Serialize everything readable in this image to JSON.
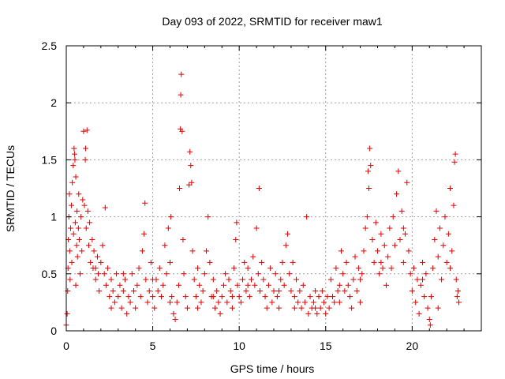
{
  "chart_data": {
    "type": "scatter",
    "title": "Day 093 of 2022, SRMTID for receiver maw1",
    "xlabel": "GPS time / hours",
    "ylabel": "SRMTID / TECUs",
    "xlim": [
      0,
      24
    ],
    "ylim": [
      0,
      2.5
    ],
    "x_ticks": [
      0,
      5,
      10,
      15,
      20
    ],
    "y_ticks": [
      0,
      0.5,
      1,
      1.5,
      2,
      2.5
    ],
    "x_tick_labels": [
      "0",
      "5",
      "10",
      "15",
      "20"
    ],
    "y_tick_labels": [
      "0",
      "0.5",
      "1",
      "1.5",
      "2",
      "2.5"
    ],
    "grid": true,
    "marker": "+",
    "color": "#e00000",
    "series": [
      {
        "name": "SRMTID",
        "points": [
          [
            0.0,
            0.05
          ],
          [
            0.05,
            0.15
          ],
          [
            0.08,
            0.35
          ],
          [
            0.1,
            0.55
          ],
          [
            0.12,
            0.8
          ],
          [
            0.15,
            1.0
          ],
          [
            0.18,
            1.2
          ],
          [
            0.2,
            0.7
          ],
          [
            0.22,
            0.45
          ],
          [
            0.25,
            0.9
          ],
          [
            0.3,
            1.1
          ],
          [
            0.32,
            0.6
          ],
          [
            0.35,
            1.3
          ],
          [
            0.4,
            1.45
          ],
          [
            0.42,
            0.85
          ],
          [
            0.45,
            1.6
          ],
          [
            0.48,
            1.55
          ],
          [
            0.5,
            1.5
          ],
          [
            0.52,
            0.95
          ],
          [
            0.55,
            1.35
          ],
          [
            0.6,
            0.75
          ],
          [
            0.62,
            1.05
          ],
          [
            0.65,
            0.65
          ],
          [
            0.7,
            0.9
          ],
          [
            0.72,
            1.2
          ],
          [
            0.75,
            0.8
          ],
          [
            0.8,
            0.5
          ],
          [
            0.85,
            1.0
          ],
          [
            0.9,
            0.7
          ],
          [
            0.95,
            1.15
          ],
          [
            1.0,
            1.75
          ],
          [
            1.05,
            1.1
          ],
          [
            1.1,
            1.5
          ],
          [
            1.12,
            1.6
          ],
          [
            1.15,
            0.9
          ],
          [
            1.2,
            1.76
          ],
          [
            1.25,
            1.05
          ],
          [
            1.3,
            0.75
          ],
          [
            1.35,
            0.95
          ],
          [
            1.4,
            0.6
          ],
          [
            1.5,
            0.8
          ],
          [
            1.55,
            0.55
          ],
          [
            1.6,
            0.7
          ],
          [
            1.7,
            0.45
          ],
          [
            1.8,
            0.65
          ],
          [
            1.85,
            0.5
          ],
          [
            1.9,
            0.35
          ],
          [
            2.0,
            0.6
          ],
          [
            2.1,
            0.75
          ],
          [
            2.2,
            0.5
          ],
          [
            2.25,
            1.08
          ],
          [
            2.3,
            0.4
          ],
          [
            2.4,
            0.55
          ],
          [
            2.5,
            0.3
          ],
          [
            2.6,
            0.45
          ],
          [
            2.7,
            0.35
          ],
          [
            2.8,
            0.25
          ],
          [
            2.9,
            0.5
          ],
          [
            3.0,
            0.3
          ],
          [
            3.1,
            0.4
          ],
          [
            3.2,
            0.2
          ],
          [
            3.3,
            0.35
          ],
          [
            3.4,
            0.45
          ],
          [
            3.5,
            0.15
          ],
          [
            3.6,
            0.3
          ],
          [
            3.7,
            0.25
          ],
          [
            3.8,
            0.5
          ],
          [
            3.9,
            0.35
          ],
          [
            4.0,
            0.2
          ],
          [
            4.1,
            0.4
          ],
          [
            4.2,
            0.55
          ],
          [
            4.3,
            0.3
          ],
          [
            4.4,
            0.7
          ],
          [
            4.5,
            0.85
          ],
          [
            4.55,
            1.12
          ],
          [
            4.6,
            0.45
          ],
          [
            4.7,
            0.25
          ],
          [
            4.8,
            0.35
          ],
          [
            4.9,
            0.6
          ],
          [
            5.0,
            0.3
          ],
          [
            5.1,
            0.2
          ],
          [
            5.2,
            0.45
          ],
          [
            5.3,
            0.35
          ],
          [
            5.4,
            0.55
          ],
          [
            5.5,
            0.3
          ],
          [
            5.6,
            0.4
          ],
          [
            5.7,
            0.75
          ],
          [
            5.8,
            0.5
          ],
          [
            5.9,
            0.9
          ],
          [
            6.0,
            0.6
          ],
          [
            6.05,
            1.0
          ],
          [
            6.1,
            0.3
          ],
          [
            6.2,
            0.15
          ],
          [
            6.3,
            0.1
          ],
          [
            6.4,
            0.25
          ],
          [
            6.5,
            0.4
          ],
          [
            6.55,
            1.25
          ],
          [
            6.6,
            1.77
          ],
          [
            6.62,
            2.07
          ],
          [
            6.65,
            2.25
          ],
          [
            6.7,
            1.75
          ],
          [
            6.75,
            0.8
          ],
          [
            6.8,
            0.5
          ],
          [
            6.9,
            0.3
          ],
          [
            7.0,
            0.2
          ],
          [
            7.1,
            1.28
          ],
          [
            7.15,
            1.57
          ],
          [
            7.2,
            1.45
          ],
          [
            7.25,
            1.3
          ],
          [
            7.3,
            0.7
          ],
          [
            7.4,
            0.45
          ],
          [
            7.5,
            0.3
          ],
          [
            7.6,
            0.55
          ],
          [
            7.7,
            0.4
          ],
          [
            7.8,
            0.25
          ],
          [
            7.9,
            0.35
          ],
          [
            8.0,
            0.5
          ],
          [
            8.1,
            0.7
          ],
          [
            8.2,
            1.0
          ],
          [
            8.3,
            0.6
          ],
          [
            8.4,
            0.3
          ],
          [
            8.5,
            0.45
          ],
          [
            8.6,
            0.2
          ],
          [
            8.7,
            0.35
          ],
          [
            8.8,
            0.25
          ],
          [
            8.9,
            0.15
          ],
          [
            9.0,
            0.3
          ],
          [
            9.1,
            0.4
          ],
          [
            9.2,
            0.5
          ],
          [
            9.3,
            0.25
          ],
          [
            9.4,
            0.45
          ],
          [
            9.5,
            0.35
          ],
          [
            9.6,
            0.2
          ],
          [
            9.7,
            0.55
          ],
          [
            9.8,
            0.8
          ],
          [
            9.85,
            0.95
          ],
          [
            9.9,
            0.4
          ],
          [
            10.0,
            0.3
          ],
          [
            10.1,
            0.25
          ],
          [
            10.2,
            0.45
          ],
          [
            10.3,
            0.6
          ],
          [
            10.4,
            0.35
          ],
          [
            10.5,
            0.55
          ],
          [
            10.6,
            0.3
          ],
          [
            10.7,
            0.45
          ],
          [
            10.8,
            0.65
          ],
          [
            10.9,
            0.4
          ],
          [
            11.0,
            0.9
          ],
          [
            11.1,
            0.5
          ],
          [
            11.15,
            1.25
          ],
          [
            11.2,
            0.35
          ],
          [
            11.3,
            0.6
          ],
          [
            11.4,
            0.45
          ],
          [
            11.5,
            0.3
          ],
          [
            11.6,
            0.2
          ],
          [
            11.7,
            0.4
          ],
          [
            11.8,
            0.55
          ],
          [
            11.9,
            0.25
          ],
          [
            12.0,
            0.35
          ],
          [
            12.1,
            0.5
          ],
          [
            12.2,
            0.3
          ],
          [
            12.3,
            0.2
          ],
          [
            12.4,
            0.45
          ],
          [
            12.5,
            0.6
          ],
          [
            12.6,
            0.4
          ],
          [
            12.7,
            0.75
          ],
          [
            12.8,
            0.85
          ],
          [
            12.9,
            0.5
          ],
          [
            13.0,
            0.35
          ],
          [
            13.1,
            0.6
          ],
          [
            13.2,
            0.3
          ],
          [
            13.3,
            0.45
          ],
          [
            13.4,
            0.25
          ],
          [
            13.5,
            0.35
          ],
          [
            13.6,
            0.2
          ],
          [
            13.7,
            0.4
          ],
          [
            13.8,
            0.25
          ],
          [
            13.9,
            1.0
          ],
          [
            14.0,
            0.15
          ],
          [
            14.1,
            0.3
          ],
          [
            14.2,
            0.2
          ],
          [
            14.3,
            0.25
          ],
          [
            14.4,
            0.35
          ],
          [
            14.5,
            0.15
          ],
          [
            14.6,
            0.3
          ],
          [
            14.7,
            0.2
          ],
          [
            14.8,
            0.35
          ],
          [
            14.9,
            0.25
          ],
          [
            15.0,
            0.15
          ],
          [
            15.1,
            0.3
          ],
          [
            15.2,
            0.2
          ],
          [
            15.3,
            0.45
          ],
          [
            15.4,
            0.3
          ],
          [
            15.5,
            0.25
          ],
          [
            15.6,
            0.55
          ],
          [
            15.7,
            0.35
          ],
          [
            15.8,
            0.25
          ],
          [
            15.9,
            0.7
          ],
          [
            16.0,
            0.5
          ],
          [
            16.1,
            0.35
          ],
          [
            16.2,
            0.6
          ],
          [
            16.3,
            0.4
          ],
          [
            16.4,
            0.3
          ],
          [
            16.5,
            0.2
          ],
          [
            16.6,
            0.45
          ],
          [
            16.7,
            0.65
          ],
          [
            16.8,
            0.35
          ],
          [
            16.9,
            0.55
          ],
          [
            17.0,
            0.25
          ],
          [
            17.1,
            0.5
          ],
          [
            17.2,
            0.7
          ],
          [
            17.3,
            0.9
          ],
          [
            17.4,
            1.0
          ],
          [
            17.45,
            1.4
          ],
          [
            17.5,
            1.25
          ],
          [
            17.55,
            1.6
          ],
          [
            17.6,
            1.45
          ],
          [
            17.7,
            0.8
          ],
          [
            17.8,
            0.6
          ],
          [
            17.9,
            0.95
          ],
          [
            18.0,
            0.7
          ],
          [
            18.1,
            0.5
          ],
          [
            18.2,
            0.85
          ],
          [
            18.3,
            0.55
          ],
          [
            18.4,
            0.75
          ],
          [
            18.5,
            0.4
          ],
          [
            18.6,
            0.65
          ],
          [
            18.7,
            0.9
          ],
          [
            18.8,
            0.55
          ],
          [
            18.9,
            1.0
          ],
          [
            19.0,
            0.75
          ],
          [
            19.1,
            1.2
          ],
          [
            19.2,
            1.4
          ],
          [
            19.3,
            0.8
          ],
          [
            19.4,
            1.05
          ],
          [
            19.5,
            0.6
          ],
          [
            19.6,
            0.85
          ],
          [
            19.7,
            1.3
          ],
          [
            19.8,
            0.7
          ],
          [
            19.9,
            0.5
          ],
          [
            20.0,
            0.35
          ],
          [
            20.1,
            0.55
          ],
          [
            20.2,
            0.25
          ],
          [
            20.3,
            0.45
          ],
          [
            20.4,
            0.15
          ],
          [
            20.5,
            0.4
          ],
          [
            20.6,
            0.6
          ],
          [
            20.7,
            0.3
          ],
          [
            20.8,
            0.5
          ],
          [
            20.9,
            0.2
          ],
          [
            21.0,
            0.1
          ],
          [
            21.05,
            0.05
          ],
          [
            21.1,
            0.3
          ],
          [
            21.2,
            0.55
          ],
          [
            21.3,
            0.8
          ],
          [
            21.4,
            1.05
          ],
          [
            21.5,
            0.65
          ],
          [
            21.6,
            0.9
          ],
          [
            21.7,
            0.45
          ],
          [
            21.8,
            0.75
          ],
          [
            21.9,
            1.0
          ],
          [
            22.0,
            0.6
          ],
          [
            22.1,
            0.85
          ],
          [
            22.2,
            1.25
          ],
          [
            22.3,
            0.7
          ],
          [
            22.4,
            1.1
          ],
          [
            22.45,
            1.48
          ],
          [
            22.5,
            1.55
          ],
          [
            22.55,
            0.45
          ],
          [
            22.6,
            0.3
          ],
          [
            22.65,
            0.35
          ],
          [
            22.7,
            0.25
          ],
          [
            0.55,
            0.4
          ],
          [
            1.7,
            0.55
          ],
          [
            2.6,
            0.2
          ],
          [
            3.3,
            0.5
          ],
          [
            5.0,
            0.45
          ],
          [
            6.0,
            0.25
          ],
          [
            7.6,
            0.2
          ],
          [
            8.5,
            0.3
          ],
          [
            9.6,
            0.3
          ],
          [
            10.5,
            0.4
          ],
          [
            12.3,
            0.35
          ],
          [
            13.2,
            0.2
          ],
          [
            14.4,
            0.2
          ],
          [
            15.8,
            0.4
          ],
          [
            17.0,
            0.45
          ],
          [
            18.2,
            0.6
          ],
          [
            19.5,
            0.9
          ],
          [
            20.6,
            0.45
          ],
          [
            21.5,
            0.2
          ],
          [
            22.2,
            0.55
          ]
        ]
      }
    ]
  }
}
